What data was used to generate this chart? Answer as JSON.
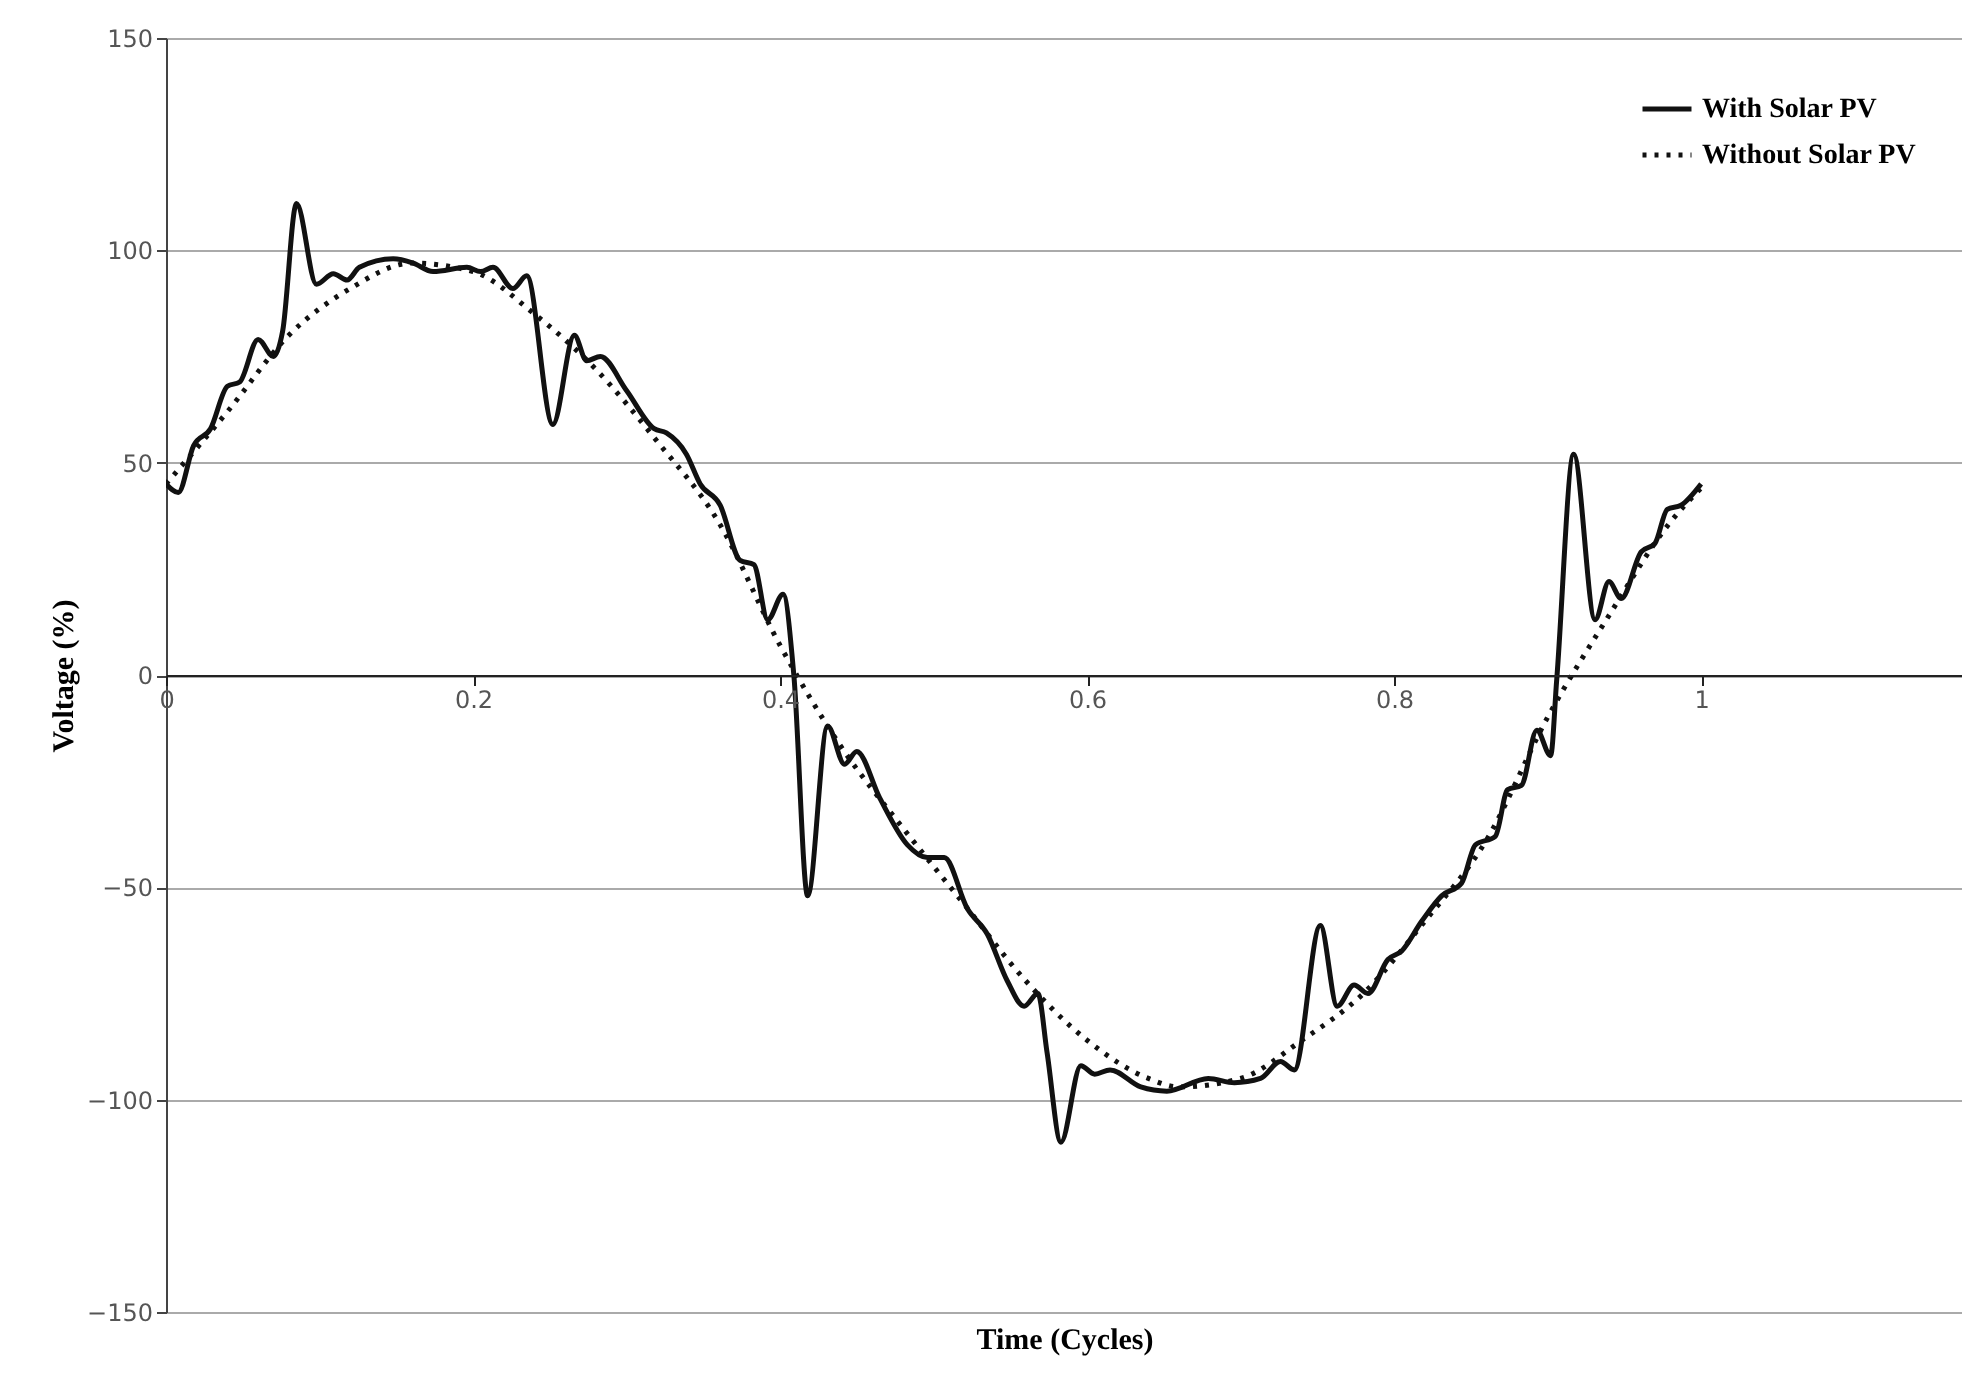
{
  "chart_data": {
    "type": "line",
    "xlabel": "Time (Cycles)",
    "ylabel": "Voltage (%)",
    "xlim": [
      0,
      1.17
    ],
    "xticks": [
      0,
      0.2,
      0.4,
      0.6,
      0.8,
      1
    ],
    "ylim": [
      -150,
      150
    ],
    "yticks": [
      -150,
      -100,
      -50,
      0,
      50,
      100,
      150
    ],
    "grid": "y",
    "legend": "top right",
    "series": [
      {
        "name": "With Solar PV",
        "color": "#111111",
        "line_style": "solid",
        "x": [
          0,
          0.008,
          0.018,
          0.029,
          0.04,
          0.048,
          0.06,
          0.07,
          0.076,
          0.085,
          0.098,
          0.109,
          0.118,
          0.126,
          0.148,
          0.161,
          0.174,
          0.196,
          0.205,
          0.213,
          0.226,
          0.235,
          0.252,
          0.266,
          0.274,
          0.283,
          0.3,
          0.318,
          0.326,
          0.339,
          0.348,
          0.361,
          0.374,
          0.383,
          0.392,
          0.402,
          0.409,
          0.418,
          0.431,
          0.442,
          0.45,
          0.465,
          0.483,
          0.496,
          0.507,
          0.522,
          0.535,
          0.548,
          0.559,
          0.568,
          0.574,
          0.583,
          0.596,
          0.605,
          0.615,
          0.635,
          0.652,
          0.679,
          0.696,
          0.713,
          0.726,
          0.735,
          0.752,
          0.763,
          0.774,
          0.783,
          0.796,
          0.805,
          0.818,
          0.831,
          0.844,
          0.853,
          0.866,
          0.874,
          0.883,
          0.893,
          0.902,
          0.906,
          0.917,
          0.931,
          0.94,
          0.948,
          0.961,
          0.97,
          0.978,
          0.987,
          1.0
        ],
        "values": [
          45,
          43,
          54,
          58,
          68,
          69,
          79,
          75,
          81,
          111,
          92,
          94.5,
          93,
          96,
          98,
          97,
          95,
          96,
          95,
          96,
          91,
          94,
          59,
          80,
          74,
          75,
          67,
          58,
          57,
          52,
          45,
          40,
          27,
          26,
          13,
          19,
          0,
          -52,
          -12,
          -21,
          -18,
          -29,
          -40,
          -43,
          -43,
          -55,
          -61,
          -72,
          -78,
          -75,
          -89,
          -110,
          -92,
          -94,
          -93,
          -97,
          -98,
          -95,
          -96,
          -95,
          -91,
          -93,
          -59,
          -78,
          -73,
          -75,
          -67,
          -65,
          -58,
          -52,
          -49,
          -40,
          -38,
          -27,
          -26,
          -13,
          -19,
          -1,
          52,
          13,
          22,
          18,
          29,
          31,
          39,
          40,
          45
        ]
      },
      {
        "name": "Without Solar PV",
        "color": "#111111",
        "line_style": "dotted",
        "x": [
          0,
          0.04,
          0.08,
          0.12,
          0.16,
          0.2,
          0.24,
          0.28,
          0.32,
          0.36,
          0.4,
          0.44,
          0.48,
          0.52,
          0.56,
          0.6,
          0.64,
          0.66,
          0.7,
          0.74,
          0.78,
          0.82,
          0.86,
          0.9,
          0.94,
          0.98,
          1.0
        ],
        "values": [
          45,
          62,
          80,
          91,
          97,
          95,
          85,
          72,
          55,
          36,
          7,
          -17,
          -36,
          -54,
          -72,
          -86,
          -95,
          -97,
          -95,
          -86,
          -75,
          -58,
          -39,
          -10,
          14,
          36,
          44
        ]
      }
    ]
  }
}
